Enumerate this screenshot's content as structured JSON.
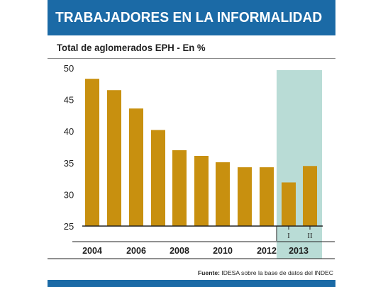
{
  "header": {
    "title": "TRABAJADORES EN LA INFORMALIDAD"
  },
  "subtitle": "Total de aglomerados EPH - En %",
  "source": {
    "label": "Fuente:",
    "text": "IDESA sobre la base de datos del INDEC"
  },
  "colors": {
    "bar": "#c8900f",
    "highlight": "#b9dcd6",
    "header": "#1b6aa6"
  },
  "chart_data": {
    "type": "bar",
    "title": "Total de aglomerados EPH - En %",
    "ylim": [
      25,
      50
    ],
    "yticks": [
      25,
      30,
      35,
      40,
      45,
      50
    ],
    "xtick_labels": [
      "2004",
      "2006",
      "2008",
      "2010",
      "2012",
      "2013"
    ],
    "subcategory_labels": [
      "I",
      "II"
    ],
    "values": [
      48.3,
      46.5,
      43.6,
      40.2,
      37.0,
      36.1,
      35.1,
      34.3,
      34.3,
      31.9,
      34.5
    ],
    "highlight": "2013",
    "grid": false
  }
}
